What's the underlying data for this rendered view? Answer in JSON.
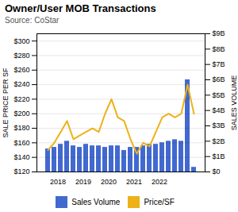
{
  "chart_data": {
    "type": "bar",
    "title": "Owner/User MOB Transactions",
    "subtitle": "Source: CoStar",
    "categories": [
      null,
      "2018",
      null,
      null,
      null,
      "2019",
      null,
      null,
      null,
      "2020",
      null,
      null,
      null,
      "2021",
      null,
      null,
      null,
      "2022",
      null,
      null,
      null,
      null,
      null,
      null
    ],
    "series": [
      {
        "name": "Sales Volume",
        "type": "bar",
        "axis": "y2",
        "values": [
          1.5,
          1.6,
          1.8,
          2.0,
          1.7,
          1.6,
          1.8,
          1.7,
          1.7,
          1.6,
          1.7,
          1.7,
          1.4,
          1.6,
          1.6,
          1.7,
          1.8,
          1.8,
          1.9,
          2.0,
          2.1,
          2.0,
          6.0,
          0.3
        ]
      },
      {
        "name": "Price/SF",
        "type": "line",
        "values": [
          150,
          160,
          175,
          190,
          165,
          170,
          175,
          180,
          175,
          200,
          220,
          195,
          190,
          165,
          145,
          160,
          155,
          175,
          195,
          200,
          195,
          200,
          240,
          200
        ]
      }
    ],
    "ylabel": "SALE PRICE PER SF",
    "y2label": "SALES VOLUME",
    "ylim": [
      120,
      310
    ],
    "yticks": [
      {
        "value": 120,
        "label": "$120"
      },
      {
        "value": 140,
        "label": "$140"
      },
      {
        "value": 160,
        "label": "$160"
      },
      {
        "value": 180,
        "label": "$180"
      },
      {
        "value": 200,
        "label": "$200"
      },
      {
        "value": 220,
        "label": "$220"
      },
      {
        "value": 240,
        "label": "$240"
      },
      {
        "value": 260,
        "label": "$260"
      },
      {
        "value": 280,
        "label": "$280"
      },
      {
        "value": 300,
        "label": "$300"
      }
    ],
    "y2lim": [
      0,
      9
    ],
    "y2ticks": [
      {
        "value": 0,
        "label": "$0"
      },
      {
        "value": 1,
        "label": "$1B"
      },
      {
        "value": 2,
        "label": "$2B"
      },
      {
        "value": 3,
        "label": "$3B"
      },
      {
        "value": 4,
        "label": "$4B"
      },
      {
        "value": 5,
        "label": "$5B"
      },
      {
        "value": 6,
        "label": "$6B"
      },
      {
        "value": 7,
        "label": "$7B"
      },
      {
        "value": 8,
        "label": "$8B"
      },
      {
        "value": 9,
        "label": "$9B"
      }
    ],
    "grid": true,
    "legend": "bottom"
  }
}
